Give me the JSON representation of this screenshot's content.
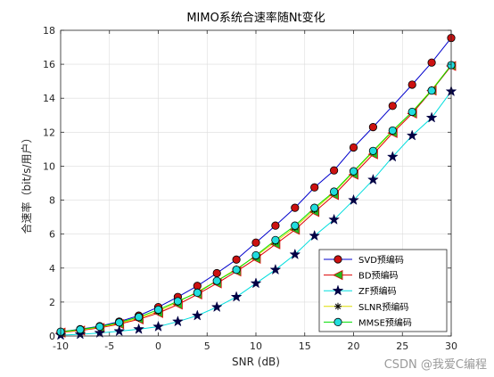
{
  "chart_data": {
    "type": "line",
    "title": "MIMO系统合速率随Nt变化",
    "xlabel": "SNR (dB)",
    "ylabel": "合速率（bit/s/用户）",
    "xlim": [
      -10,
      30
    ],
    "ylim": [
      0,
      18
    ],
    "xticks": [
      -10,
      -5,
      0,
      5,
      10,
      15,
      20,
      25,
      30
    ],
    "yticks": [
      0,
      2,
      4,
      6,
      8,
      10,
      12,
      14,
      16,
      18
    ],
    "grid": true,
    "legend_position": "bottom-right",
    "x": [
      -10,
      -8,
      -6,
      -4,
      -2,
      0,
      2,
      4,
      6,
      8,
      10,
      12,
      14,
      16,
      18,
      20,
      22,
      24,
      26,
      28,
      30
    ],
    "series": [
      {
        "name": "SVD预编码",
        "color": "#0000cc",
        "marker": "circle",
        "marker_fill": "#cc1111",
        "values": [
          0.25,
          0.4,
          0.58,
          0.85,
          1.2,
          1.7,
          2.3,
          2.95,
          3.7,
          4.5,
          5.5,
          6.5,
          7.55,
          8.75,
          9.75,
          11.1,
          12.3,
          13.55,
          14.8,
          16.1,
          17.55
        ]
      },
      {
        "name": "BD预编码",
        "color": "#dd0000",
        "marker": "triangle-left",
        "marker_fill": "#22bb22",
        "values": [
          0.2,
          0.32,
          0.48,
          0.7,
          0.98,
          1.35,
          1.85,
          2.45,
          3.1,
          3.8,
          4.55,
          5.4,
          6.25,
          7.3,
          8.3,
          9.5,
          10.7,
          11.95,
          13.1,
          14.45,
          15.9
        ]
      },
      {
        "name": "ZF预编码",
        "color": "#00dddd",
        "marker": "star",
        "marker_fill": "#000044",
        "values": [
          0.05,
          0.1,
          0.18,
          0.28,
          0.4,
          0.55,
          0.85,
          1.2,
          1.7,
          2.3,
          3.1,
          3.9,
          4.8,
          5.9,
          6.85,
          8.0,
          9.2,
          10.55,
          11.8,
          12.85,
          14.4
        ]
      },
      {
        "name": "SLNR预编码",
        "color": "#dddd00",
        "marker": "asterisk",
        "marker_fill": "#000000",
        "values": [
          0.22,
          0.35,
          0.52,
          0.75,
          1.05,
          1.45,
          2.0,
          2.6,
          3.25,
          3.95,
          4.7,
          5.55,
          6.4,
          7.45,
          8.45,
          9.65,
          10.85,
          12.05,
          13.2,
          14.5,
          15.95
        ]
      },
      {
        "name": "MMSE预编码",
        "color": "#00dd00",
        "marker": "circle",
        "marker_fill": "#22dddd",
        "values": [
          0.25,
          0.38,
          0.55,
          0.8,
          1.12,
          1.55,
          2.05,
          2.55,
          3.25,
          3.9,
          4.75,
          5.65,
          6.5,
          7.55,
          8.5,
          9.7,
          10.9,
          12.1,
          13.2,
          14.45,
          15.95
        ]
      }
    ]
  },
  "watermark": "CSDN @我爱C编程"
}
